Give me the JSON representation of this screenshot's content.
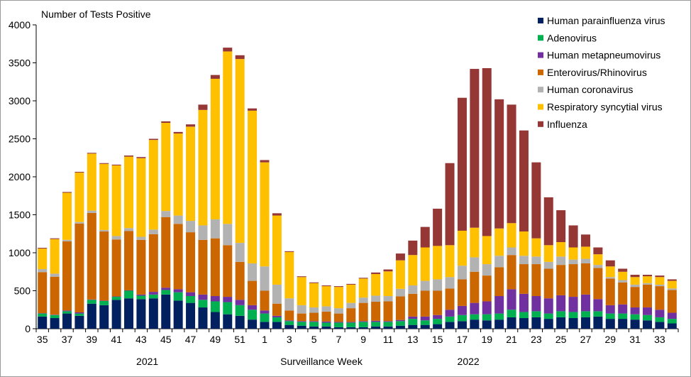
{
  "chart_data": {
    "type": "bar",
    "stacked": true,
    "ylabel": "Number of Tests Positive",
    "xlabel": "Surveillance Week",
    "year_labels": [
      "2021",
      "2022"
    ],
    "ylim": [
      0,
      4000
    ],
    "yticks": [
      0,
      500,
      1000,
      1500,
      2000,
      2500,
      3000,
      3500,
      4000
    ],
    "legend_position": "top-right",
    "categories": [
      35,
      36,
      37,
      38,
      39,
      40,
      41,
      42,
      43,
      44,
      45,
      46,
      47,
      48,
      49,
      50,
      51,
      52,
      1,
      2,
      3,
      4,
      5,
      6,
      7,
      8,
      9,
      10,
      11,
      12,
      13,
      14,
      15,
      16,
      17,
      18,
      19,
      20,
      21,
      22,
      23,
      24,
      25,
      26,
      27,
      28,
      29,
      30,
      31,
      32,
      33,
      34
    ],
    "series": [
      {
        "name": "Human parainfluenza virus",
        "color": "#002060",
        "values": [
          160,
          140,
          200,
          170,
          330,
          310,
          380,
          400,
          390,
          400,
          450,
          370,
          340,
          280,
          220,
          190,
          170,
          120,
          90,
          90,
          50,
          40,
          30,
          30,
          20,
          20,
          20,
          30,
          30,
          40,
          50,
          50,
          60,
          90,
          100,
          120,
          110,
          120,
          150,
          140,
          150,
          130,
          150,
          140,
          150,
          160,
          130,
          130,
          120,
          110,
          90,
          70
        ]
      },
      {
        "name": "Adenovirus",
        "color": "#00b050",
        "values": [
          40,
          40,
          30,
          30,
          50,
          55,
          40,
          100,
          45,
          50,
          60,
          110,
          90,
          100,
          140,
          160,
          140,
          130,
          110,
          60,
          50,
          50,
          60,
          50,
          60,
          60,
          70,
          60,
          60,
          60,
          80,
          60,
          70,
          70,
          80,
          70,
          80,
          80,
          100,
          80,
          80,
          70,
          80,
          80,
          80,
          70,
          70,
          70,
          70,
          70,
          60,
          60
        ]
      },
      {
        "name": "Human metapneumovirus",
        "color": "#7030a0",
        "values": [
          5,
          5,
          10,
          15,
          5,
          5,
          5,
          5,
          15,
          35,
          30,
          40,
          50,
          70,
          70,
          70,
          70,
          60,
          40,
          20,
          10,
          10,
          10,
          15,
          10,
          10,
          10,
          15,
          10,
          15,
          30,
          50,
          50,
          90,
          120,
          150,
          170,
          230,
          270,
          240,
          200,
          200,
          210,
          200,
          220,
          160,
          110,
          120,
          90,
          100,
          100,
          80
        ]
      },
      {
        "name": "Enterovirus/Rhinovirus",
        "color": "#cc6600",
        "values": [
          540,
          500,
          910,
          1170,
          1140,
          910,
          750,
          780,
          720,
          760,
          930,
          860,
          790,
          720,
          760,
          680,
          500,
          320,
          260,
          160,
          130,
          100,
          110,
          130,
          110,
          180,
          240,
          250,
          260,
          310,
          300,
          340,
          320,
          280,
          350,
          410,
          340,
          380,
          450,
          390,
          420,
          390,
          400,
          430,
          410,
          410,
          350,
          290,
          270,
          300,
          310,
          300
        ]
      },
      {
        "name": "Human coronavirus",
        "color": "#b2b2b2",
        "values": [
          40,
          40,
          20,
          20,
          30,
          20,
          45,
          40,
          40,
          60,
          80,
          110,
          150,
          190,
          250,
          280,
          250,
          230,
          320,
          250,
          160,
          110,
          70,
          70,
          70,
          70,
          70,
          80,
          70,
          100,
          110,
          130,
          150,
          150,
          180,
          190,
          150,
          150,
          100,
          110,
          100,
          90,
          110,
          60,
          60,
          40,
          20,
          30,
          30,
          20,
          20,
          20
        ]
      },
      {
        "name": "Respiratory syncytial virus",
        "color": "#ffc000",
        "values": [
          270,
          455,
          620,
          650,
          750,
          870,
          930,
          940,
          1035,
          1180,
          1160,
          1080,
          1240,
          1520,
          1850,
          2270,
          2420,
          2010,
          1370,
          910,
          610,
          370,
          320,
          265,
          280,
          240,
          250,
          285,
          325,
          375,
          400,
          440,
          440,
          420,
          460,
          390,
          370,
          360,
          320,
          320,
          240,
          220,
          190,
          160,
          160,
          140,
          140,
          110,
          100,
          90,
          100,
          100
        ]
      },
      {
        "name": "Influenza",
        "color": "#953735",
        "values": [
          10,
          10,
          10,
          10,
          10,
          10,
          10,
          15,
          15,
          15,
          20,
          20,
          30,
          70,
          50,
          50,
          50,
          30,
          30,
          30,
          10,
          10,
          10,
          10,
          10,
          10,
          10,
          20,
          25,
          90,
          190,
          270,
          490,
          1080,
          1750,
          2090,
          2210,
          1700,
          1560,
          1330,
          1000,
          630,
          420,
          290,
          160,
          90,
          80,
          40,
          30,
          20,
          20,
          20
        ]
      }
    ]
  }
}
